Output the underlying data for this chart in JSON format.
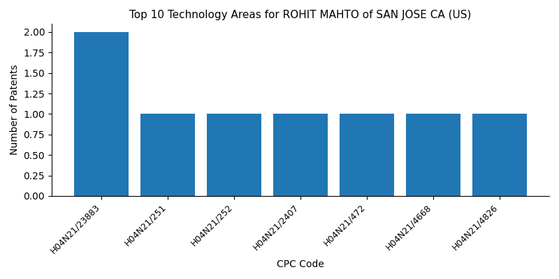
{
  "title": "Top 10 Technology Areas for ROHIT MAHTO of SAN JOSE CA (US)",
  "xlabel": "CPC Code",
  "ylabel": "Number of Patents",
  "categories": [
    "H04N21/23883",
    "H04N21/251",
    "H04N21/252",
    "H04N21/2407",
    "H04N21/472",
    "H04N21/4668",
    "H04N21/4826"
  ],
  "values": [
    2,
    1,
    1,
    1,
    1,
    1,
    1
  ],
  "bar_color": "#2077b4",
  "ylim": [
    0,
    2.1
  ],
  "yticks": [
    0.0,
    0.25,
    0.5,
    0.75,
    1.0,
    1.25,
    1.5,
    1.75,
    2.0
  ],
  "bar_width": 0.82,
  "figsize": [
    8.0,
    4.0
  ],
  "dpi": 100,
  "title_fontsize": 11,
  "label_fontsize": 10,
  "tick_fontsize": 9
}
